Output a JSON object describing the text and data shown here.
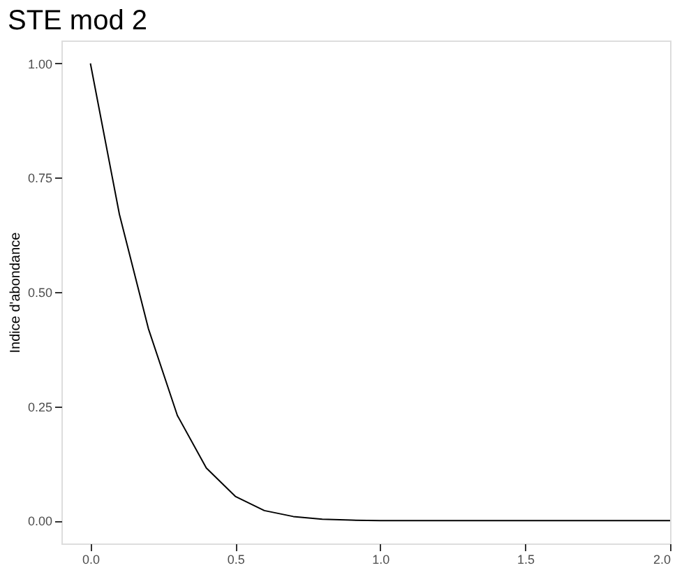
{
  "chart_data": {
    "type": "line",
    "title": "STE mod 2",
    "ylabel": "Indice d'abondance",
    "x": [
      0,
      0.1,
      0.2,
      0.3,
      0.4,
      0.5,
      0.6,
      0.7,
      0.8,
      0.9,
      1.0,
      1.1,
      1.2,
      1.3,
      1.4,
      1.5,
      1.6,
      1.7,
      1.8,
      1.9,
      2.0
    ],
    "series": [
      {
        "color": "#000000",
        "values": [
          1.0,
          0.67,
          0.42,
          0.23,
          0.115,
          0.053,
          0.022,
          0.009,
          0.003,
          0.001,
          0,
          0,
          0,
          0,
          0,
          0,
          0,
          0,
          0,
          0,
          0
        ]
      }
    ],
    "xlim": [
      -0.1,
      2.0
    ],
    "xticks": [
      {
        "value": 0,
        "label": "0.0"
      },
      {
        "value": 0.5,
        "label": "0.5"
      },
      {
        "value": 1,
        "label": "1.0"
      },
      {
        "value": 1.5,
        "label": "1.5"
      },
      {
        "value": 2,
        "label": "2.0"
      }
    ],
    "ylim": [
      -0.05,
      1.05
    ],
    "yticks": [
      {
        "value": 0,
        "label": "0.00"
      },
      {
        "value": 0.25,
        "label": "0.25"
      },
      {
        "value": 0.5,
        "label": "0.50"
      },
      {
        "value": 0.75,
        "label": "0.75"
      },
      {
        "value": 1,
        "label": "1.00"
      }
    ],
    "grid": false,
    "marker": "none",
    "line_style": "solid"
  }
}
